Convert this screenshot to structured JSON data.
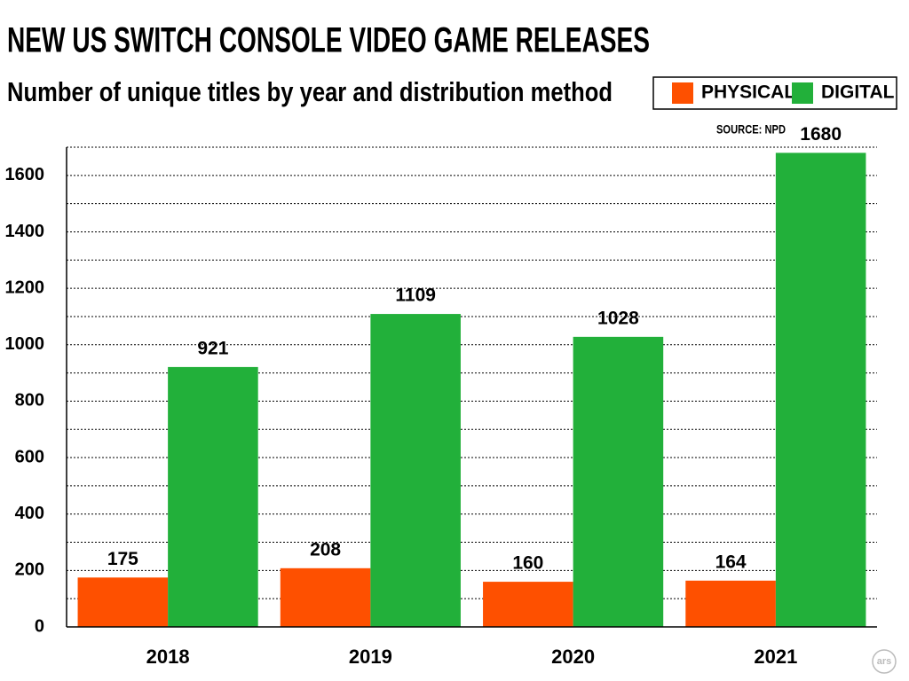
{
  "chart_data": {
    "type": "bar",
    "title": "NEW US SWITCH CONSOLE VIDEO GAME RELEASES",
    "subtitle": "Number of unique titles by year and distribution method",
    "source": "SOURCE: NPD",
    "logo": "ars",
    "categories": [
      "2018",
      "2019",
      "2020",
      "2021"
    ],
    "series": [
      {
        "name": "PHYSICAL",
        "color": "#fe5000",
        "values": [
          175,
          208,
          160,
          164
        ]
      },
      {
        "name": "DIGITAL",
        "color": "#22b03a",
        "values": [
          921,
          1109,
          1028,
          1680
        ]
      }
    ],
    "ylim": [
      0,
      1700
    ],
    "yticks": [
      0,
      200,
      400,
      600,
      800,
      1000,
      1200,
      1400,
      1600
    ],
    "minor_yticks": [
      100,
      300,
      500,
      700,
      900,
      1100,
      1300,
      1500,
      1700
    ],
    "grid": true,
    "legend": "top-right"
  }
}
